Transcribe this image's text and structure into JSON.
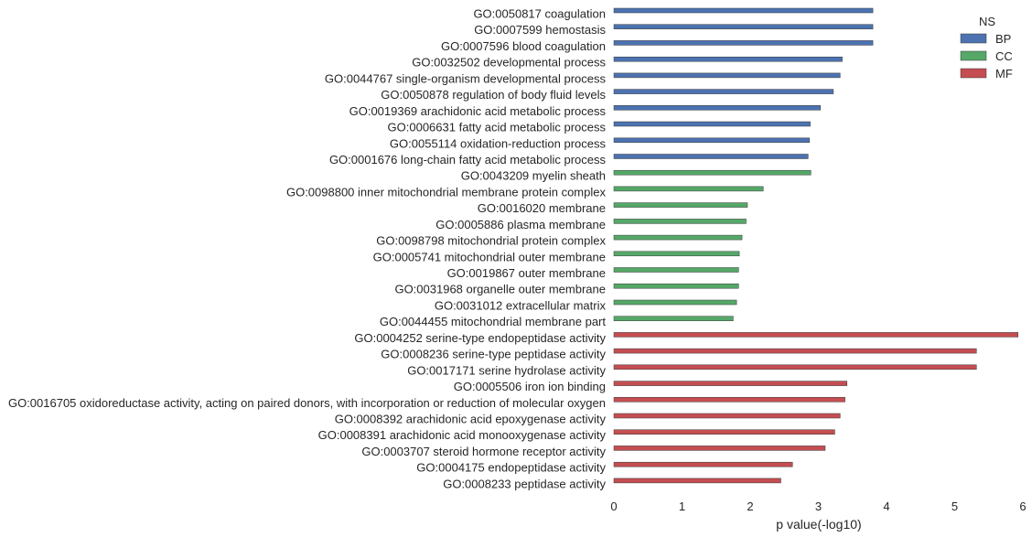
{
  "chart_data": {
    "type": "bar",
    "orientation": "horizontal",
    "xlabel": "p value(-log10)",
    "ylabel": "",
    "xlim": [
      0,
      6
    ],
    "xticks": [
      "0",
      "1",
      "2",
      "3",
      "4",
      "5",
      "6"
    ],
    "grid": false,
    "legend": {
      "title": "NS",
      "placement": "top-right",
      "entries": [
        {
          "name": "BP",
          "color": "#4c72b0"
        },
        {
          "name": "CC",
          "color": "#55a868"
        },
        {
          "name": "MF",
          "color": "#c44e52"
        }
      ]
    },
    "categories": [
      "GO:0050817 coagulation",
      "GO:0007599 hemostasis",
      "GO:0007596 blood coagulation",
      "GO:0032502 developmental process",
      "GO:0044767 single-organism developmental process",
      "GO:0050878 regulation of body fluid levels",
      "GO:0019369 arachidonic acid metabolic process",
      "GO:0006631 fatty acid metabolic process",
      "GO:0055114 oxidation-reduction process",
      "GO:0001676 long-chain fatty acid metabolic process",
      "GO:0043209 myelin sheath",
      "GO:0098800 inner mitochondrial membrane protein complex",
      "GO:0016020 membrane",
      "GO:0005886 plasma membrane",
      "GO:0098798 mitochondrial protein complex",
      "GO:0005741 mitochondrial outer membrane",
      "GO:0019867 outer membrane",
      "GO:0031968 organelle outer membrane",
      "GO:0031012 extracellular matrix",
      "GO:0044455 mitochondrial membrane part",
      "GO:0004252 serine-type endopeptidase activity",
      "GO:0008236 serine-type peptidase activity",
      "GO:0017171 serine hydrolase activity",
      "GO:0005506 iron ion binding",
      "GO:0016705 oxidoreductase activity, acting on paired donors, with incorporation or reduction of molecular oxygen",
      "GO:0008392 arachidonic acid epoxygenase activity",
      "GO:0008391 arachidonic acid monooxygenase activity",
      "GO:0003707 steroid hormone receptor activity",
      "GO:0004175 endopeptidase activity",
      "GO:0008233 peptidase activity"
    ],
    "values": [
      3.8,
      3.8,
      3.8,
      3.35,
      3.32,
      3.22,
      3.03,
      2.88,
      2.87,
      2.85,
      2.89,
      2.19,
      1.96,
      1.94,
      1.88,
      1.84,
      1.83,
      1.83,
      1.8,
      1.75,
      5.93,
      5.32,
      5.32,
      3.42,
      3.39,
      3.32,
      3.24,
      3.1,
      2.62,
      2.45
    ],
    "groups": [
      "BP",
      "BP",
      "BP",
      "BP",
      "BP",
      "BP",
      "BP",
      "BP",
      "BP",
      "BP",
      "CC",
      "CC",
      "CC",
      "CC",
      "CC",
      "CC",
      "CC",
      "CC",
      "CC",
      "CC",
      "MF",
      "MF",
      "MF",
      "MF",
      "MF",
      "MF",
      "MF",
      "MF",
      "MF",
      "MF"
    ]
  }
}
